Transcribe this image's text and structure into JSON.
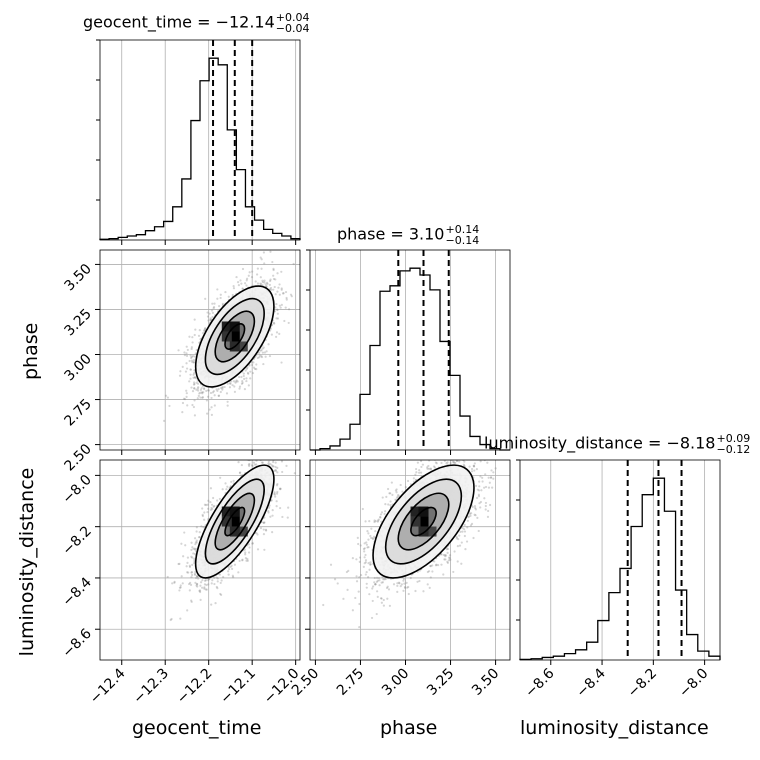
{
  "chart_data": {
    "type": "corner",
    "parameters": [
      {
        "name": "geocent_time",
        "title_label": "geocent_time = −12.14",
        "median": -12.14,
        "err_plus": "+0.04",
        "err_minus": "−0.04",
        "quantiles": [
          -12.19,
          -12.14,
          -12.1
        ],
        "range": [
          -12.45,
          -11.99
        ],
        "ticks": [
          -12.4,
          -12.3,
          -12.2,
          -12.1,
          -12.0
        ],
        "tick_labels": [
          "−12.4",
          "−12.3",
          "−12.2",
          "−12.1",
          "−12.0"
        ],
        "hist_counts": [
          0.5,
          1,
          2,
          3,
          4,
          7,
          10,
          14,
          25,
          46,
          90,
          120,
          137,
          132,
          83,
          53,
          25,
          15,
          8,
          5,
          3,
          1
        ]
      },
      {
        "name": "phase",
        "title_label": "phase = 3.10",
        "median": 3.1,
        "err_plus": "+0.14",
        "err_minus": "−0.14",
        "quantiles": [
          2.96,
          3.1,
          3.24
        ],
        "range": [
          2.47,
          3.58
        ],
        "ticks": [
          2.5,
          2.75,
          3.0,
          3.25,
          3.5
        ],
        "tick_labels": [
          "2.50",
          "2.75",
          "3.00",
          "3.25",
          "3.50"
        ],
        "hist_counts": [
          0,
          1,
          3,
          8,
          19,
          41,
          77,
          117,
          121,
          132,
          134,
          129,
          118,
          80,
          55,
          25,
          10,
          4,
          1,
          0
        ]
      },
      {
        "name": "luminosity_distance",
        "title_label": "luminosity_distance = −8.18",
        "median": -8.18,
        "err_plus": "+0.09",
        "err_minus": "−0.12",
        "quantiles": [
          -8.3,
          -8.18,
          -8.09
        ],
        "range": [
          -8.72,
          -7.94
        ],
        "ticks": [
          -8.6,
          -8.4,
          -8.2,
          -8.0
        ],
        "tick_labels": [
          "−8.6",
          "−8.4",
          "−8.2",
          "−8.0"
        ],
        "hist_counts": [
          0.5,
          1,
          2,
          3,
          5,
          8,
          14,
          31,
          53,
          72,
          105,
          130,
          143,
          117,
          55,
          20,
          7,
          3
        ]
      }
    ],
    "pairs": [
      {
        "x": "geocent_time",
        "y": "phase",
        "mean": [
          -12.14,
          3.1
        ],
        "sd": [
          0.045,
          0.14
        ],
        "corr": 0.6
      },
      {
        "x": "geocent_time",
        "y": "luminosity_distance",
        "mean": [
          -12.14,
          -8.18
        ],
        "sd": [
          0.045,
          0.11
        ],
        "corr": 0.75
      },
      {
        "x": "phase",
        "y": "luminosity_distance",
        "mean": [
          3.1,
          -8.18
        ],
        "sd": [
          0.14,
          0.11
        ],
        "corr": 0.6
      }
    ],
    "grid": true,
    "contour_levels_sigma": [
      0.5,
      1.0,
      1.5,
      2.0
    ]
  }
}
